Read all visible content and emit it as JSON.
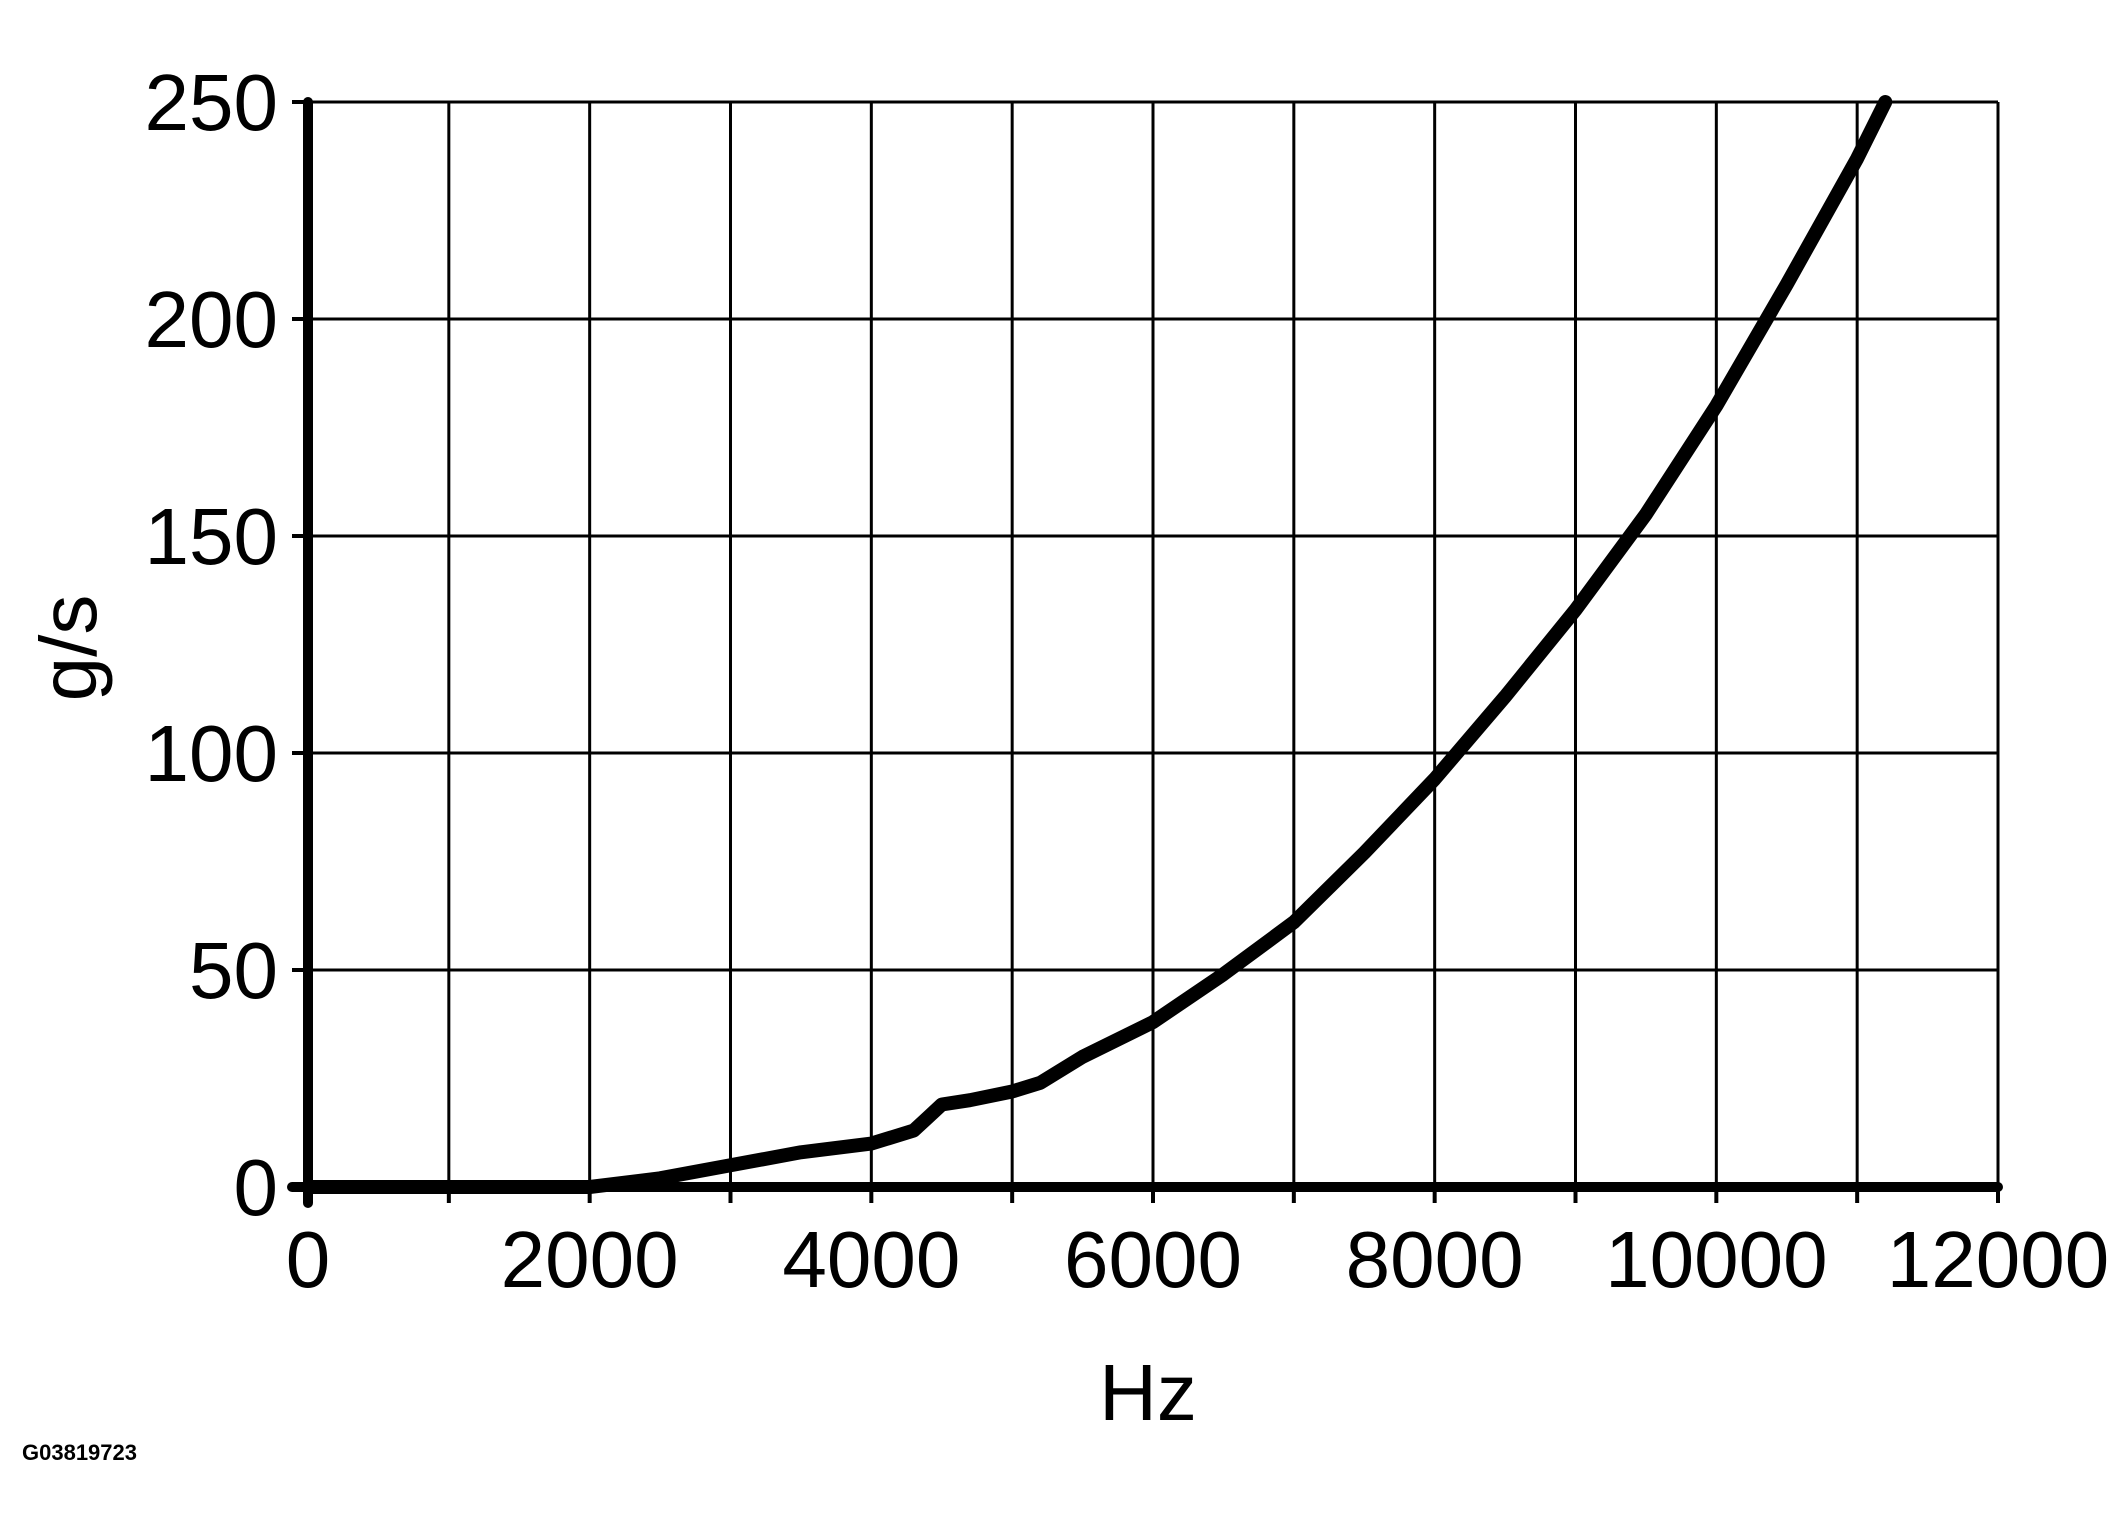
{
  "chart_data": {
    "type": "line",
    "title": "",
    "xlabel": "Hz",
    "ylabel": "g/s",
    "xlim": [
      0,
      12000
    ],
    "ylim": [
      0,
      250
    ],
    "grid": true,
    "legend": "none",
    "line_color": "#000000",
    "x_ticks": [
      "0",
      "2000",
      "4000",
      "6000",
      "8000",
      "10000",
      "12000"
    ],
    "y_ticks": [
      "0",
      "50",
      "100",
      "150",
      "200",
      "250"
    ],
    "series": [
      {
        "x": [
          0,
          2000,
          2500,
          3000,
          3500,
          4000,
          4300,
          4400,
          4500,
          4700,
          5000,
          5200,
          5500,
          6000,
          6500,
          7000,
          7500,
          8000,
          8500,
          9000,
          9500,
          10000,
          10500,
          11000,
          11200
        ],
        "values": [
          0,
          0,
          2,
          5,
          8,
          10,
          13,
          16,
          19,
          20,
          22,
          24,
          30,
          38,
          49,
          61,
          77,
          94,
          113,
          133,
          155,
          180,
          208,
          237,
          250
        ]
      }
    ]
  },
  "figure_id": "G03819723"
}
